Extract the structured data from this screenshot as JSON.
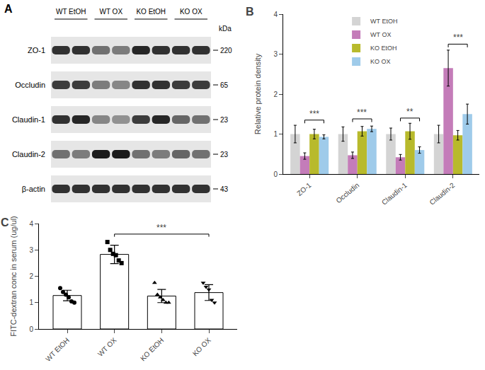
{
  "blot": {
    "label": "A",
    "unit": "kDa",
    "lanes": [
      "WT EtOH",
      "WT OX",
      "KO EtOH",
      "KO OX"
    ],
    "rows": [
      {
        "name": "ZO-1",
        "size": 220,
        "bands": [
          0.85,
          0.85,
          0.55,
          0.5,
          0.9,
          0.85,
          0.85,
          0.85
        ]
      },
      {
        "name": "Occludin",
        "size": 65,
        "bands": [
          0.8,
          0.8,
          0.5,
          0.45,
          0.85,
          0.85,
          0.8,
          0.8
        ]
      },
      {
        "name": "Claudin-1",
        "size": 23,
        "bands": [
          0.85,
          0.9,
          0.45,
          0.4,
          0.8,
          0.9,
          0.6,
          0.55
        ]
      },
      {
        "name": "Claudin-2",
        "size": 23,
        "bands": [
          0.55,
          0.5,
          0.95,
          0.95,
          0.55,
          0.5,
          0.6,
          0.55
        ]
      },
      {
        "name": "β-actin",
        "size": 43,
        "bands": [
          0.85,
          0.85,
          0.85,
          0.85,
          0.85,
          0.85,
          0.85,
          0.85
        ]
      }
    ]
  },
  "chart_data": [
    {
      "label": "B",
      "type": "bar",
      "categories": [
        "ZO-1",
        "Occludin",
        "Claudin-1",
        "Claudin-2"
      ],
      "y_label": "Relative protein density",
      "ylim": [
        0,
        4
      ],
      "yticks": [
        0,
        1,
        2,
        3,
        4
      ],
      "grid": false,
      "legend": "top",
      "series": [
        {
          "name": "WT EtOH",
          "color": "#d4d4d4",
          "values": [
            1.0,
            1.0,
            1.0,
            1.0
          ],
          "errors": [
            0.22,
            0.18,
            0.15,
            0.22
          ]
        },
        {
          "name": "WT OX",
          "color": "#c47cb9",
          "values": [
            0.45,
            0.47,
            0.42,
            2.65
          ],
          "errors": [
            0.08,
            0.08,
            0.07,
            0.45
          ]
        },
        {
          "name": "KO EtOH",
          "color": "#b8ba2c",
          "values": [
            1.0,
            1.07,
            1.07,
            0.97
          ],
          "errors": [
            0.12,
            0.12,
            0.2,
            0.12
          ]
        },
        {
          "name": "KO OX",
          "color": "#9fcbea",
          "values": [
            0.93,
            1.13,
            0.6,
            1.5
          ],
          "errors": [
            0.05,
            0.07,
            0.08,
            0.25
          ]
        }
      ],
      "annotations": [
        {
          "category": "ZO-1",
          "from": "WT OX",
          "to": "KO OX",
          "y": 1.35,
          "text": "***"
        },
        {
          "category": "Occludin",
          "from": "WT OX",
          "to": "KO OX",
          "y": 1.38,
          "text": "***"
        },
        {
          "category": "Claudin-1",
          "from": "WT OX",
          "to": "KO OX",
          "y": 1.4,
          "text": "**"
        },
        {
          "category": "Claudin-2",
          "from": "WT OX",
          "to": "KO OX",
          "y": 3.25,
          "text": "***"
        }
      ]
    },
    {
      "label": "C",
      "type": "bar",
      "categories": [
        "WT EtOH",
        "WT OX",
        "KO EtOH",
        "KO OX"
      ],
      "y_label": "FITC-dextran conc in serum (ug/ul)",
      "ylim": [
        0,
        4
      ],
      "yticks": [
        0,
        1,
        2,
        3,
        4
      ],
      "grid": false,
      "values": [
        1.27,
        2.83,
        1.25,
        1.38
      ],
      "errors": [
        0.2,
        0.35,
        0.25,
        0.3
      ],
      "color": "#ffffff",
      "points": [
        {
          "marker": "circle",
          "values": [
            1.55,
            1.4,
            1.3,
            1.2,
            1.05,
            1.0
          ]
        },
        {
          "marker": "square",
          "values": [
            3.3,
            3.0,
            2.85,
            2.8,
            2.6,
            2.5
          ]
        },
        {
          "marker": "triangle-up",
          "values": [
            1.75,
            1.3,
            1.2,
            1.1,
            1.0,
            1.0
          ]
        },
        {
          "marker": "triangle-down",
          "values": [
            1.75,
            1.6,
            1.5,
            1.1,
            1.0
          ]
        }
      ],
      "annotations": [
        {
          "from": "WT OX",
          "to": "KO OX",
          "y": 3.6,
          "text": "***"
        }
      ]
    }
  ]
}
